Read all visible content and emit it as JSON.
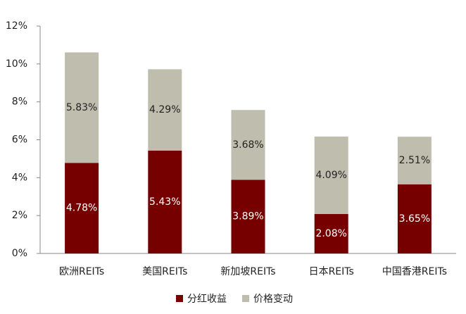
{
  "chart_data": {
    "type": "stacked_bar",
    "categories": [
      "欧洲REITs",
      "美国REITs",
      "新加坡REITs",
      "日本REITs",
      "中国香港REITs"
    ],
    "series": [
      {
        "name": "分红收益",
        "color": "#760000",
        "values": [
          4.78,
          5.43,
          3.89,
          2.08,
          3.65
        ],
        "value_labels": [
          "4.78%",
          "5.43%",
          "3.89%",
          "2.08%",
          "3.65%"
        ],
        "label_color": "#ffffff"
      },
      {
        "name": "价格变动",
        "color": "#bfbdad",
        "values": [
          5.83,
          4.29,
          3.68,
          4.09,
          2.51
        ],
        "value_labels": [
          "5.83%",
          "4.29%",
          "3.68%",
          "4.09%",
          "2.51%"
        ],
        "label_color": "#222222"
      }
    ],
    "ylim": [
      0,
      12
    ],
    "yticks": [
      {
        "value": 0,
        "label": "0%"
      },
      {
        "value": 2,
        "label": "2%"
      },
      {
        "value": 4,
        "label": "4%"
      },
      {
        "value": 6,
        "label": "6%"
      },
      {
        "value": 8,
        "label": "8%"
      },
      {
        "value": 10,
        "label": "10%"
      },
      {
        "value": 12,
        "label": "12%"
      }
    ],
    "legend": "bottom"
  }
}
